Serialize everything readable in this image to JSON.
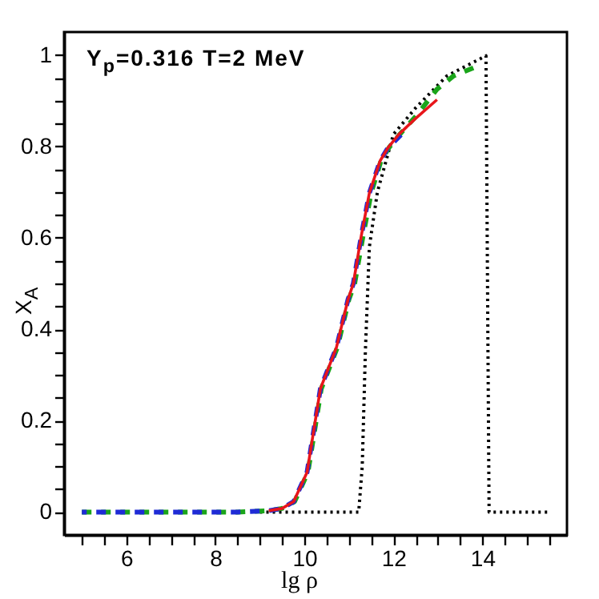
{
  "chart_data": {
    "type": "line",
    "xlabel": "lg ρ",
    "ylabel": "X$_{A}$",
    "annotations": [
      "Y$_{p}$=0.316 T=2 MeV"
    ],
    "xlim": [
      4.6,
      15.9
    ],
    "ylim": [
      -0.05,
      1.05
    ],
    "xticks": [
      {
        "value": 5,
        "label": null
      },
      {
        "value": 5.5,
        "label": null
      },
      6,
      {
        "value": 6.5,
        "label": null
      },
      {
        "value": 7,
        "label": null
      },
      {
        "value": 7.5,
        "label": null
      },
      8,
      {
        "value": 8.5,
        "label": null
      },
      {
        "value": 9,
        "label": null
      },
      {
        "value": 9.5,
        "label": null
      },
      10,
      {
        "value": 10.5,
        "label": null
      },
      {
        "value": 11,
        "label": null
      },
      {
        "value": 11.5,
        "label": null
      },
      12,
      {
        "value": 12.5,
        "label": null
      },
      {
        "value": 13,
        "label": null
      },
      {
        "value": 13.5,
        "label": null
      },
      14,
      {
        "value": 14.5,
        "label": null
      },
      {
        "value": 15,
        "label": null
      },
      {
        "value": 15.5,
        "label": null
      }
    ],
    "yticks": [
      0,
      {
        "value": 0.05,
        "label": null
      },
      {
        "value": 0.1,
        "label": null
      },
      {
        "value": 0.15,
        "label": null
      },
      0.2,
      {
        "value": 0.25,
        "label": null
      },
      {
        "value": 0.3,
        "label": null
      },
      {
        "value": 0.35,
        "label": null
      },
      0.4,
      {
        "value": 0.45,
        "label": null
      },
      {
        "value": 0.5,
        "label": null
      },
      {
        "value": 0.55,
        "label": null
      },
      0.6,
      {
        "value": 0.65,
        "label": null
      },
      {
        "value": 0.7,
        "label": null
      },
      {
        "value": 0.75,
        "label": null
      },
      0.8,
      {
        "value": 0.85,
        "label": null
      },
      {
        "value": 0.9,
        "label": null
      },
      {
        "value": 0.95,
        "label": null
      },
      1
    ],
    "grid": false,
    "marker": "none",
    "series": [
      {
        "color": "#e8161b",
        "line_style": "solid",
        "x": [
          9.2,
          9.5,
          9.76,
          10.06,
          10.36,
          10.72,
          10.98,
          11.1,
          11.28,
          11.46,
          11.7,
          11.88,
          12.12,
          12.5,
          12.98
        ],
        "values": [
          0.003,
          0.008,
          0.023,
          0.087,
          0.27,
          0.36,
          0.465,
          0.5,
          0.605,
          0.698,
          0.768,
          0.797,
          0.826,
          0.861,
          0.902
        ]
      },
      {
        "color": "#1f2bd6",
        "line_style": "dashed",
        "x": [
          5,
          7,
          8.5,
          9.2,
          9.5,
          9.76,
          10.06,
          10.36,
          10.72,
          10.98,
          11.1,
          11.28,
          11.46,
          11.7,
          11.88,
          12.18
        ],
        "values": [
          0,
          0,
          0,
          0.003,
          0.008,
          0.023,
          0.087,
          0.27,
          0.36,
          0.465,
          0.5,
          0.605,
          0.698,
          0.768,
          0.797,
          0.826
        ]
      },
      {
        "color": "#1aa51a",
        "line_style": "dashed",
        "x": [
          5,
          7,
          8.5,
          9.2,
          9.5,
          9.78,
          10.08,
          10.38,
          10.74,
          11.0,
          11.13,
          11.32,
          11.5,
          11.72,
          11.9,
          12.14,
          12.5,
          12.98,
          13.35,
          13.88
        ],
        "values": [
          0,
          0,
          0,
          0.003,
          0.008,
          0.023,
          0.087,
          0.27,
          0.36,
          0.465,
          0.5,
          0.605,
          0.698,
          0.768,
          0.797,
          0.826,
          0.865,
          0.925,
          0.954,
          0.975
        ]
      },
      {
        "color": "#000000",
        "line_style": "dotted",
        "x": [
          9,
          11.22,
          11.3,
          11.37,
          11.46,
          11.64,
          12.0,
          12.5,
          13.2,
          14.08,
          14.15,
          15.5
        ],
        "values": [
          0,
          0,
          0.1,
          0.35,
          0.58,
          0.7,
          0.826,
          0.884,
          0.954,
          0.998,
          0,
          0
        ]
      }
    ]
  }
}
